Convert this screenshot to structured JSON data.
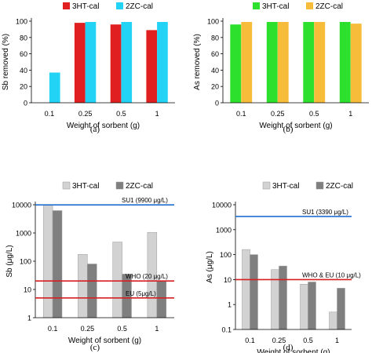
{
  "chart_data": [
    {
      "panel": "(a)",
      "type": "bar",
      "scale": "linear",
      "xlabel": "Weight of sorbent (g)",
      "ylabel": "Sb removed (%)",
      "categories": [
        "0.1",
        "0.25",
        "0.5",
        "1"
      ],
      "yticks": [
        "0",
        "20",
        "40",
        "60",
        "80",
        "100"
      ],
      "ylim": [
        0,
        100
      ],
      "series": [
        {
          "name": "3HT-cal",
          "color": "#e02020",
          "values": [
            0,
            98,
            96,
            89
          ]
        },
        {
          "name": "2ZC-cal",
          "color": "#22d3f5",
          "values": [
            37,
            99,
            99,
            99
          ]
        }
      ],
      "legend": "top",
      "grid": false
    },
    {
      "panel": "(b)",
      "type": "bar",
      "scale": "linear",
      "xlabel": "Weight of sorbent (g)",
      "ylabel": "As removed (%)",
      "categories": [
        "0.1",
        "0.25",
        "0.5",
        "1"
      ],
      "yticks": [
        "0",
        "20",
        "40",
        "60",
        "80",
        "100"
      ],
      "ylim": [
        0,
        100
      ],
      "series": [
        {
          "name": "3HT-cal",
          "color": "#2ee02e",
          "values": [
            96,
            99,
            99,
            99
          ]
        },
        {
          "name": "2ZC-cal",
          "color": "#f7bd3a",
          "values": [
            99,
            99,
            99,
            97
          ]
        }
      ],
      "legend": "top",
      "grid": false
    },
    {
      "panel": "(c)",
      "type": "bar",
      "scale": "log",
      "xlabel": "Weight of sorbent (g)",
      "ylabel": "Sb (μg/L)",
      "categories": [
        "0.1",
        "0.25",
        "0.5",
        "1"
      ],
      "yticks": [
        "1",
        "10",
        "100",
        "1000",
        "10000"
      ],
      "ylim": [
        1,
        10000
      ],
      "series": [
        {
          "name": "3HT-cal",
          "color": "#d2d2d2",
          "values": [
            9500,
            175,
            480,
            1050
          ]
        },
        {
          "name": "2ZC-cal",
          "color": "#7f7f7f",
          "values": [
            6200,
            80,
            35,
            20
          ]
        }
      ],
      "hlines": [
        {
          "label": "SU1 (9900  μg/L)",
          "value": 9900,
          "color": "#1f6fd1"
        },
        {
          "label": "WHO (20 μg/L)",
          "value": 20,
          "color": "#d62020"
        },
        {
          "label": "EU (5μg/L)",
          "value": 5,
          "color": "#d62020"
        }
      ],
      "legend": "top",
      "grid": false
    },
    {
      "panel": "(d)",
      "type": "bar",
      "scale": "log",
      "xlabel": "Weight of sorbent (g)",
      "ylabel": "As (μg/L)",
      "categories": [
        "0.1",
        "0.25",
        "0.5",
        "1"
      ],
      "yticks": [
        "0.1",
        "1",
        "10",
        "100",
        "1000",
        "10000"
      ],
      "ylim": [
        0.1,
        10000
      ],
      "series": [
        {
          "name": "3HT-cal",
          "color": "#d2d2d2",
          "values": [
            160,
            25,
            6.5,
            0.5
          ]
        },
        {
          "name": "2ZC-cal",
          "color": "#7f7f7f",
          "values": [
            100,
            35,
            8,
            4.5
          ]
        }
      ],
      "hlines": [
        {
          "label": "SU1 (3390  μg/L)",
          "value": 3390,
          "color": "#1f6fd1"
        },
        {
          "label": "WHO & EU (10 μg/L)",
          "value": 10,
          "color": "#d62020"
        }
      ],
      "legend": "top",
      "grid": false
    }
  ]
}
